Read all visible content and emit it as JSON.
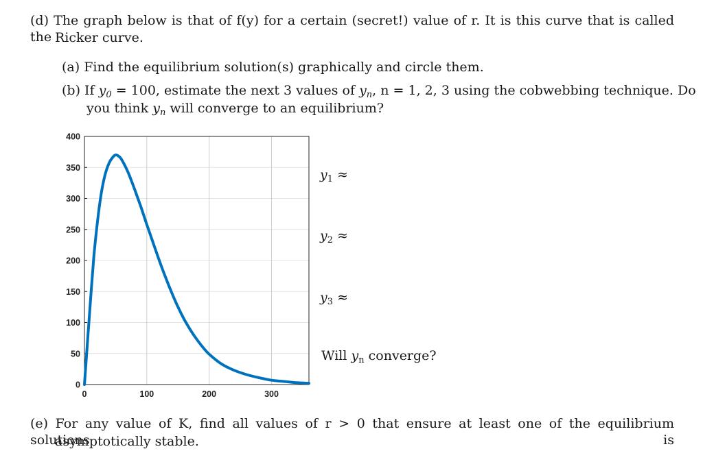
{
  "part_d": {
    "marker": "(d)",
    "line1": "The graph below is that of f(y) for a certain (secret!) value of r. It is this curve that is called the",
    "line2": "Ricker curve."
  },
  "part_a": {
    "marker": "(a)",
    "text": "Find the equilibrium solution(s) graphically and circle them."
  },
  "part_b": {
    "marker": "(b)",
    "text_pre": "If",
    "var_y": "y",
    "sub_0": "0",
    "text_mid": "= 100, estimate the next 3 values of",
    "sub_n": "n",
    "text_n": ", n = 1, 2, 3 using the cobwebbing technique. Do",
    "line2_pre": "you think",
    "line2_post": "will converge to an equilibrium?"
  },
  "answers": {
    "y1_var": "y",
    "y1_sub": "1",
    "approx": "≈",
    "y2_var": "y",
    "y2_sub": "2",
    "y3_var": "y",
    "y3_sub": "3",
    "converge_pre": "Will",
    "converge_var": "y",
    "converge_sub": "n",
    "converge_post": "converge?"
  },
  "part_e": {
    "marker": "(e)",
    "line1": "For any value of K, find all values of r > 0 that ensure at least one of the equilibrium solutions is",
    "line2": "asymptotically stable."
  },
  "chart_data": {
    "type": "line",
    "xlim": [
      0,
      360
    ],
    "ylim": [
      0,
      400
    ],
    "x_ticks": [
      0,
      100,
      200,
      300
    ],
    "y_ticks": [
      0,
      50,
      100,
      150,
      200,
      250,
      300,
      350,
      400
    ],
    "x_tick_labels": [
      "0",
      "100",
      "200",
      "300"
    ],
    "y_tick_labels": [
      "0",
      "50",
      "100",
      "150",
      "200",
      "250",
      "300",
      "350",
      "400"
    ],
    "grid": true,
    "series": [
      {
        "color": "#0072BD",
        "x": [
          0,
          5,
          10,
          15,
          20,
          25,
          30,
          35,
          40,
          45,
          50,
          55,
          60,
          70,
          80,
          90,
          100,
          110,
          120,
          130,
          140,
          150,
          160,
          170,
          180,
          190,
          200,
          220,
          240,
          260,
          280,
          300,
          320,
          340,
          360
        ],
        "y": [
          0,
          70,
          140,
          205,
          255,
          295,
          325,
          345,
          358,
          366,
          370,
          368,
          362,
          342,
          316,
          288,
          258,
          229,
          200,
          173,
          148,
          125,
          105,
          88,
          73,
          60,
          49,
          33,
          23,
          16,
          11,
          7,
          5,
          3,
          2
        ]
      }
    ]
  }
}
